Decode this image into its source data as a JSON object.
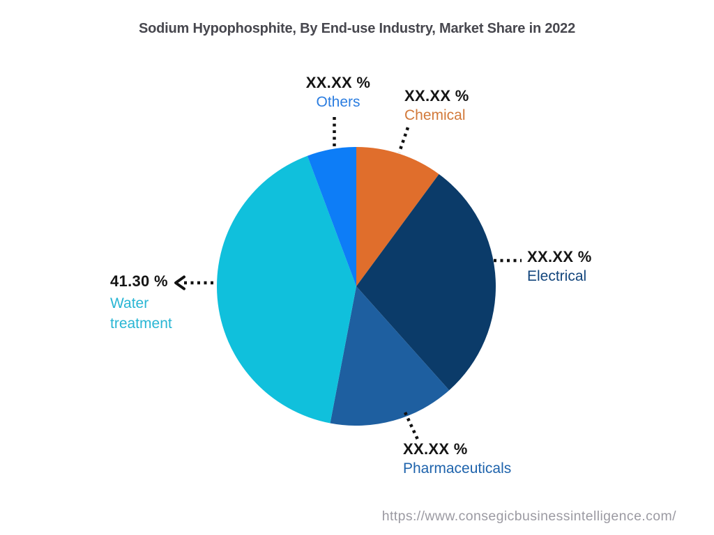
{
  "page": {
    "background_color": "#ffffff",
    "source_url": "https://www.consegicbusinessintelligence.com/",
    "source_url_color": "#9b9aa2"
  },
  "chart_data": {
    "type": "pie",
    "title": "Sodium Hypophosphite, By End-use Industry, Market Share in 2022",
    "value_unit": "%",
    "direction": "clockwise",
    "start_angle_deg": 0,
    "legend_position": "callout-labels",
    "title_color": "#47474e",
    "value_text_color": "#151515",
    "leader_line_color": "#121212",
    "slices": [
      {
        "label": "Chemical",
        "display_value": "XX.XX %",
        "percent": 10.1,
        "color": "#e06e2c",
        "label_color": "#d2793a"
      },
      {
        "label": "Electrical",
        "display_value": "XX.XX %",
        "percent": 28.3,
        "color": "#0b3b69",
        "label_color": "#12457c"
      },
      {
        "label": "Pharmaceuticals",
        "display_value": "XX.XX %",
        "percent": 14.6,
        "color": "#1e5fa0",
        "label_color": "#1e63ac"
      },
      {
        "label": "Water treatment",
        "display_value": "41.30 %",
        "percent": 41.3,
        "color": "#10c0dc",
        "label_color": "#29b6d4"
      },
      {
        "label": "Others",
        "display_value": "XX.XX %",
        "percent": 5.7,
        "color": "#0d7df7",
        "label_color": "#2b7de0"
      }
    ]
  }
}
